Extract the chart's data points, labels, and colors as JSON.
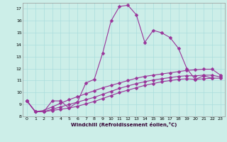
{
  "xlabel": "Windchill (Refroidissement éolien,°C)",
  "background_color": "#cceee8",
  "line_color": "#993399",
  "grid_color": "#aadddd",
  "xlim": [
    -0.5,
    23.5
  ],
  "ylim": [
    8,
    17.5
  ],
  "xticks": [
    0,
    1,
    2,
    3,
    4,
    5,
    6,
    7,
    8,
    9,
    10,
    11,
    12,
    13,
    14,
    15,
    16,
    17,
    18,
    19,
    20,
    21,
    22,
    23
  ],
  "yticks": [
    8,
    9,
    10,
    11,
    12,
    13,
    14,
    15,
    16,
    17
  ],
  "line1_x": [
    0,
    1,
    2,
    3,
    4,
    5,
    6,
    7,
    8,
    9,
    10,
    11,
    12,
    13,
    14,
    15,
    16,
    17,
    18,
    19,
    20,
    21,
    22
  ],
  "line1_y": [
    9.3,
    8.4,
    8.4,
    9.3,
    9.3,
    8.7,
    9.2,
    10.8,
    11.1,
    13.3,
    16.0,
    17.2,
    17.3,
    16.5,
    14.2,
    15.2,
    15.0,
    14.6,
    13.7,
    12.0,
    11.1,
    11.4,
    11.2
  ],
  "line2_x": [
    0,
    1,
    2,
    3,
    4,
    5,
    6,
    7,
    8,
    9,
    10,
    11,
    12,
    13,
    14,
    15,
    16,
    17,
    18,
    19,
    20,
    21,
    22,
    23
  ],
  "line2_y": [
    9.3,
    8.4,
    8.4,
    8.5,
    8.6,
    8.7,
    8.85,
    9.05,
    9.25,
    9.5,
    9.75,
    10.0,
    10.2,
    10.4,
    10.6,
    10.75,
    10.9,
    11.0,
    11.1,
    11.15,
    11.1,
    11.15,
    11.2,
    11.2
  ],
  "line3_x": [
    0,
    1,
    2,
    3,
    4,
    5,
    6,
    7,
    8,
    9,
    10,
    11,
    12,
    13,
    14,
    15,
    16,
    17,
    18,
    19,
    20,
    21,
    22,
    23
  ],
  "line3_y": [
    9.3,
    8.4,
    8.4,
    8.6,
    8.8,
    9.0,
    9.2,
    9.4,
    9.6,
    9.85,
    10.1,
    10.35,
    10.55,
    10.75,
    10.9,
    11.05,
    11.15,
    11.25,
    11.35,
    11.4,
    11.4,
    11.45,
    11.45,
    11.3
  ],
  "line4_x": [
    0,
    1,
    2,
    3,
    4,
    5,
    6,
    7,
    8,
    9,
    10,
    11,
    12,
    13,
    14,
    15,
    16,
    17,
    18,
    19,
    20,
    21,
    22,
    23
  ],
  "line4_y": [
    9.3,
    8.4,
    8.5,
    8.8,
    9.1,
    9.4,
    9.65,
    9.9,
    10.15,
    10.4,
    10.6,
    10.8,
    11.0,
    11.2,
    11.35,
    11.45,
    11.55,
    11.65,
    11.75,
    11.85,
    11.9,
    11.95,
    11.95,
    11.45
  ],
  "markersize": 2.5,
  "linewidth": 0.8
}
